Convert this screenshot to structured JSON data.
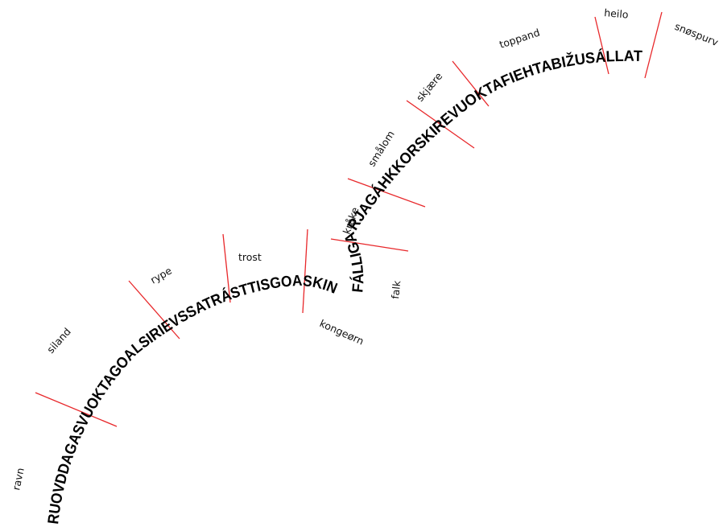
{
  "colors": {
    "background": "#ffffff",
    "text": "#000000",
    "separator": "#e8282b"
  },
  "segments": [
    {
      "sami": "RUOVDDAGAS",
      "norwegian": "ravn"
    },
    {
      "sami": "VUOKTAGOALSI",
      "norwegian": "siland"
    },
    {
      "sami": "RIEVSSAT",
      "norwegian": "rype"
    },
    {
      "sami": "RÁSTTIS",
      "norwegian": "trost"
    },
    {
      "sami": "GOASKIN",
      "norwegian": "kongeørn"
    },
    {
      "sami": "FÁLLI",
      "norwegian": "falk"
    },
    {
      "sami": "GARJA",
      "norwegian": "kråke"
    },
    {
      "sami": "GÁHKKOR",
      "norwegian": "smålom"
    },
    {
      "sami": "SKIRE",
      "norwegian": "skjære"
    },
    {
      "sami": "VUOKTAFIEHTA",
      "norwegian": "toppand"
    },
    {
      "sami": "BIŽUS",
      "norwegian": "heilo"
    },
    {
      "sami": "ÁLLAT",
      "norwegian": "snøspurv"
    }
  ]
}
